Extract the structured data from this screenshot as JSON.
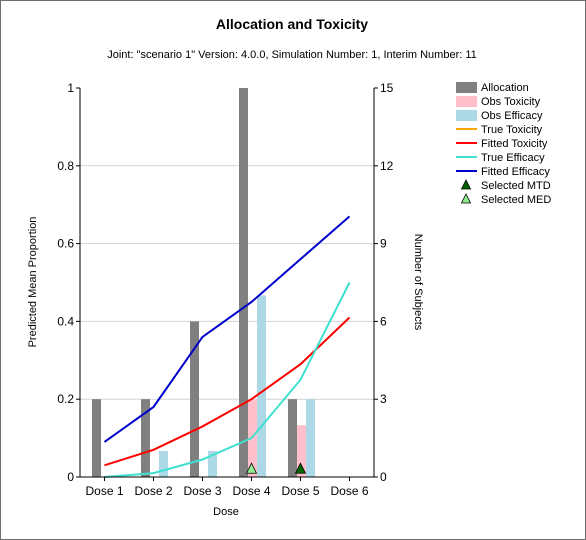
{
  "chart_data": {
    "type": "bar+line",
    "title": "Allocation and Toxicity",
    "subtitle": "Joint: \"scenario 1\" Version: 4.0.0, Simulation Number: 1, Interim Number: 11",
    "xlabel": "Dose",
    "ylabel": "Predicted Mean Proportion",
    "y2label": "Number of Subjects",
    "categories": [
      "Dose 1",
      "Dose 2",
      "Dose 3",
      "Dose 4",
      "Dose 5",
      "Dose 6"
    ],
    "ylim": [
      0,
      1
    ],
    "y2lim": [
      0,
      15
    ],
    "yticks": [
      "0",
      "0.2",
      "0.4",
      "0.6",
      "0.8",
      "1"
    ],
    "y2ticks": [
      "0",
      "3",
      "6",
      "9",
      "12",
      "15"
    ],
    "bars": [
      {
        "name": "Allocation",
        "axis": "y2",
        "color": "#808080",
        "values": [
          3,
          3,
          6,
          15,
          3,
          0
        ]
      },
      {
        "name": "Obs Toxicity",
        "axis": "y",
        "color": "#ffc0cb",
        "values": [
          0,
          0,
          0,
          0.2,
          0.133,
          0
        ]
      },
      {
        "name": "Obs Efficacy",
        "axis": "y",
        "color": "#add8e6",
        "values": [
          0,
          0.067,
          0.067,
          0.467,
          0.2,
          0
        ]
      }
    ],
    "lines": [
      {
        "name": "True Toxicity",
        "color": "#ffa500",
        "values": []
      },
      {
        "name": "Fitted Toxicity",
        "color": "#ff0000",
        "values": [
          0.03,
          0.07,
          0.13,
          0.2,
          0.29,
          0.41
        ]
      },
      {
        "name": "True Efficacy",
        "color": "#40e0d0",
        "values": [
          0.0,
          0.01,
          0.045,
          0.1,
          0.25,
          0.5
        ]
      },
      {
        "name": "Fitted Efficacy",
        "color": "#0000cd",
        "values": [
          0.09,
          0.18,
          0.36,
          0.45,
          0.56,
          0.67
        ]
      }
    ],
    "markers": [
      {
        "name": "Selected MTD",
        "color": "#006400",
        "dose_index": 4,
        "value": 0.02
      },
      {
        "name": "Selected MED",
        "color": "#90ee90",
        "dose_index": 3,
        "value": 0.02
      }
    ],
    "legend": [
      {
        "label": "Allocation",
        "kind": "box",
        "color": "#808080"
      },
      {
        "label": "Obs Toxicity",
        "kind": "box",
        "color": "#ffc0cb"
      },
      {
        "label": "Obs Efficacy",
        "kind": "box",
        "color": "#add8e6"
      },
      {
        "label": "True Toxicity",
        "kind": "line",
        "color": "#ffa500"
      },
      {
        "label": "Fitted Toxicity",
        "kind": "line",
        "color": "#ff0000"
      },
      {
        "label": "True Efficacy",
        "kind": "line",
        "color": "#40e0d0"
      },
      {
        "label": "Fitted Efficacy",
        "kind": "line",
        "color": "#0000cd"
      },
      {
        "label": "Selected MTD",
        "kind": "triangle",
        "color": "#006400"
      },
      {
        "label": "Selected MED",
        "kind": "triangle",
        "color": "#90ee90"
      }
    ]
  }
}
